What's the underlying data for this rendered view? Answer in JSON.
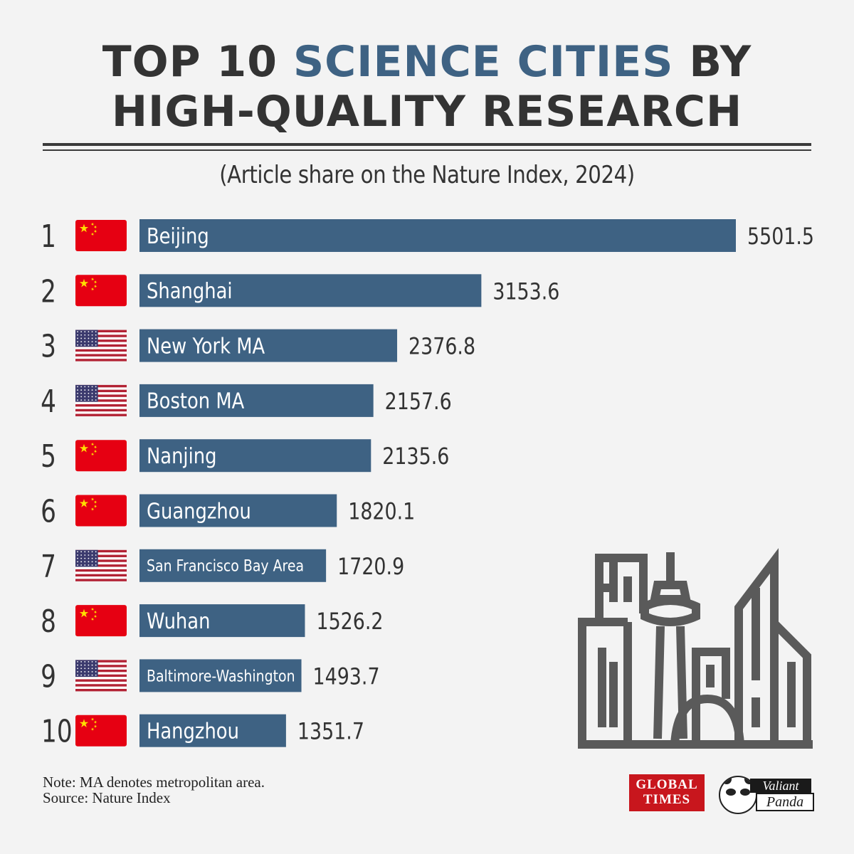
{
  "header": {
    "title_part1": "TOP 10 ",
    "title_accent": "SCIENCE CITIES",
    "title_part2": " BY",
    "title_line2": "HIGH-QUALITY RESEARCH",
    "subtitle": "(Article share on the Nature Index, 2024)"
  },
  "colors": {
    "bar": "#3e6283",
    "text": "#333333",
    "accent": "#3e6283",
    "china_flag": "#e60012",
    "usa_red": "#b22234",
    "usa_blue": "#3c3b6e",
    "background": "#f3f3f3"
  },
  "chart_data": {
    "type": "bar",
    "orientation": "horizontal",
    "categories": [
      "Beijing",
      "Shanghai",
      "New York MA",
      "Boston MA",
      "Nanjing",
      "Guangzhou",
      "San Francisco Bay Area",
      "Wuhan",
      "Baltimore-Washington",
      "Hangzhou"
    ],
    "ranks": [
      "1",
      "2",
      "3",
      "4",
      "5",
      "6",
      "7",
      "8",
      "9",
      "10"
    ],
    "countries": [
      "china",
      "china",
      "usa",
      "usa",
      "china",
      "china",
      "usa",
      "china",
      "usa",
      "china"
    ],
    "values": [
      5501.5,
      3153.6,
      2376.8,
      2157.6,
      2135.6,
      1820.1,
      1720.9,
      1526.2,
      1493.7,
      1351.7
    ],
    "value_labels": [
      "5501.5",
      "3153.6",
      "2376.8",
      "2157.6",
      "2135.6",
      "1820.1",
      "1720.9",
      "1526.2",
      "1493.7",
      "1351.7"
    ],
    "title": "TOP 10 SCIENCE CITIES BY HIGH-QUALITY RESEARCH",
    "subtitle": "(Article share on the Nature Index, 2024)",
    "xlim": [
      0,
      5501.5
    ],
    "grid": false,
    "legend": "none"
  },
  "footer": {
    "note": "Note: MA denotes metropolitan area.",
    "source": "Source: Nature Index"
  },
  "logos": {
    "global_times_line1": "GLOBAL",
    "global_times_line2": "TIMES",
    "valiant": "Valiant",
    "panda": "Panda"
  },
  "icons": {
    "skyline": "city-skyline-icon"
  }
}
